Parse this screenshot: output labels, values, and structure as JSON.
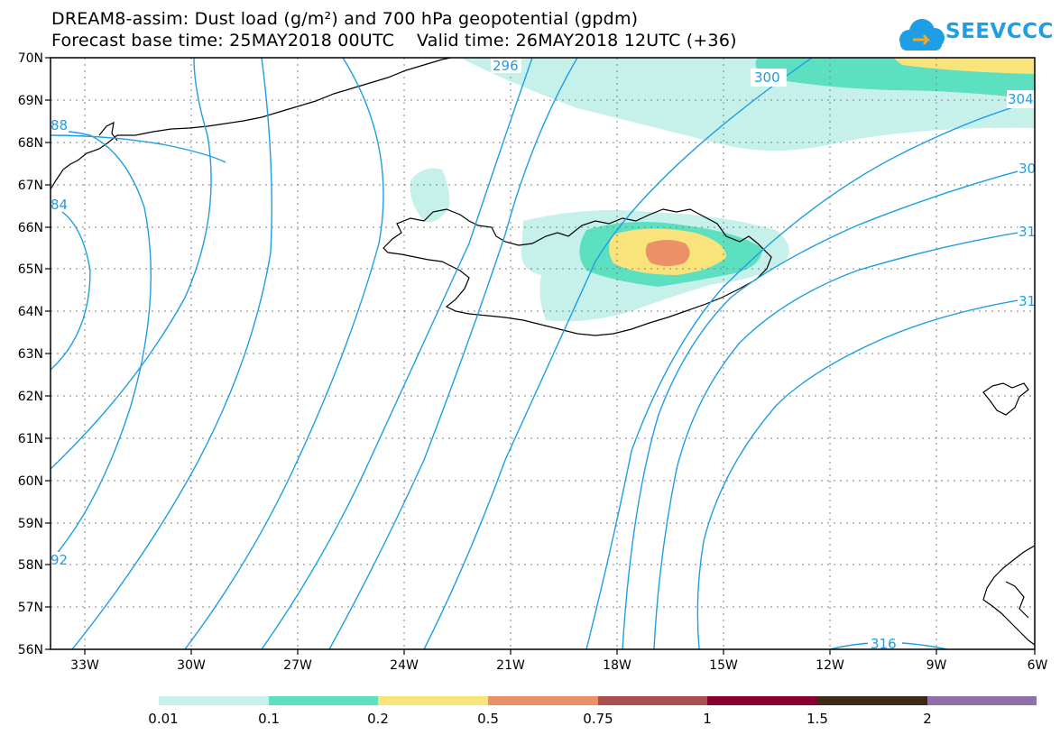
{
  "title": {
    "line1": "DREAM8-assim: Dust load (g/m²) and 700 hPa geopotential (gpdm)",
    "line2": "Forecast base time: 25MAY2018 00UTC    Valid time: 26MAY2018 12UTC (+36)"
  },
  "logo": {
    "text": "SEEVCCC",
    "icon": "cloud-icon",
    "color": "#1e9ee4"
  },
  "map": {
    "lat_labels": [
      "70N",
      "69N",
      "68N",
      "67N",
      "66N",
      "65N",
      "64N",
      "63N",
      "62N",
      "61N",
      "60N",
      "59N",
      "58N",
      "57N",
      "56N"
    ],
    "lon_labels": [
      "33W",
      "30W",
      "27W",
      "24W",
      "21W",
      "18W",
      "15W",
      "12W",
      "9W",
      "6W"
    ],
    "isoline_color": "#1e9ee4",
    "isoline_labels": [
      "88",
      "84",
      "92",
      "296",
      "300",
      "304",
      "30",
      "31",
      "31",
      "316"
    ]
  },
  "colorbar": {
    "colors": [
      "#c6f0ea",
      "#5ce0c0",
      "#f8e47a",
      "#ec9068",
      "#a85050",
      "#880030",
      "#402818",
      "#9070a8"
    ],
    "labels": [
      "0.01",
      "0.1",
      "0.2",
      "0.5",
      "0.75",
      "1",
      "1.5",
      "2"
    ]
  }
}
